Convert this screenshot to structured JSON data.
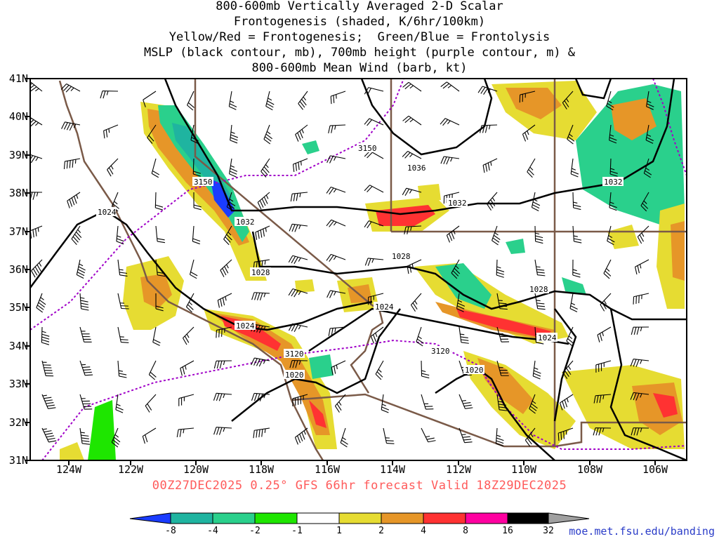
{
  "title": {
    "lines": [
      "800-600mb Vertically Averaged 2-D Scalar",
      "Frontogenesis (shaded, K/6hr/100km)",
      "Yellow/Red = Frontogenesis;  Green/Blue = Frontolysis",
      "MSLP (black contour, mb), 700mb height (purple contour, m) &",
      "800-600mb Mean Wind (barb, kt)"
    ]
  },
  "axes": {
    "lat_labels": [
      "41N",
      "40N",
      "39N",
      "38N",
      "37N",
      "36N",
      "35N",
      "34N",
      "33N",
      "32N",
      "31N"
    ],
    "lon_labels": [
      "124W",
      "122W",
      "120W",
      "118W",
      "116W",
      "114W",
      "112W",
      "110W",
      "108W",
      "106W"
    ]
  },
  "contour_labels": {
    "mslp": [
      "1024",
      "1032",
      "1028",
      "1024",
      "1020",
      "1036",
      "1032",
      "1028",
      "1024",
      "1028",
      "1024",
      "1032",
      "1020"
    ],
    "height_700mb": [
      "3150",
      "3150",
      "3120",
      "3120"
    ]
  },
  "valid_text": "00Z27DEC2025 0.25° GFS 66hr forecast Valid 18Z29DEC2025",
  "colorbar": {
    "labels": [
      "-8",
      "-4",
      "-2",
      "-1",
      "1",
      "2",
      "4",
      "8",
      "16",
      "32"
    ],
    "colors": [
      "#1a3cff",
      "#1fb4a0",
      "#2ad08c",
      "#1ee600",
      "#ffffff",
      "#e6dc32",
      "#e69628",
      "#ff3232",
      "#ff00a0",
      "#000000",
      "#a0a0a0"
    ]
  },
  "colors": {
    "mslp": "#000000",
    "height": "#a000c8",
    "borders": "#7a5a48",
    "valid_text": "#ff5a5a",
    "credit": "#2a3cc8"
  },
  "credit": "moe.met.fsu.edu/banding"
}
